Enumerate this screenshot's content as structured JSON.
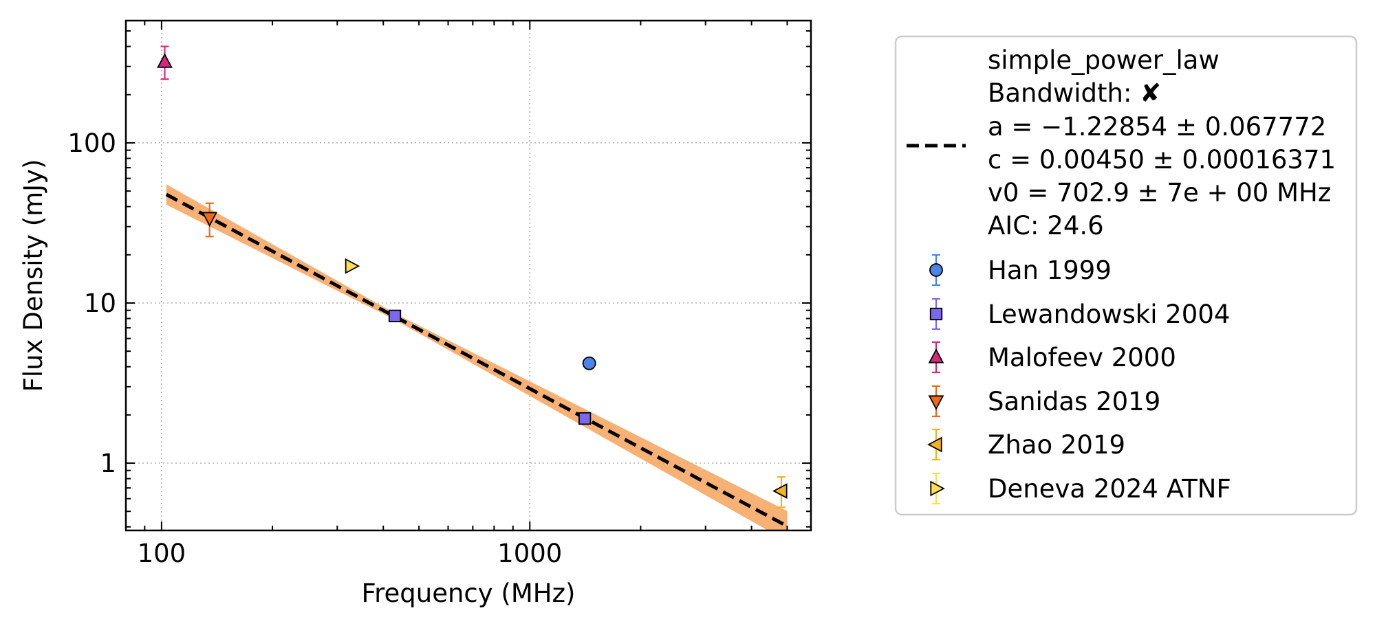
{
  "chart_data": {
    "type": "scatter",
    "xlabel": "Frequency (MHz)",
    "ylabel": "Flux Density (mJy)",
    "xscale": "log",
    "yscale": "log",
    "xlim": [
      80,
      5800
    ],
    "ylim": [
      0.38,
      580
    ],
    "xticks": [
      {
        "value": 100,
        "label": "100"
      },
      {
        "value": 1000,
        "label": "1000"
      }
    ],
    "yticks": [
      {
        "value": 1,
        "label": "1"
      },
      {
        "value": 10,
        "label": "10"
      },
      {
        "value": 100,
        "label": "100"
      }
    ],
    "grid": true,
    "legend_position": "outside-right",
    "fit": {
      "name": "simple_power_law",
      "bandwidth_label": "Bandwidth:",
      "bandwidth_value": "✘",
      "param_a": "a = −1.22854 ± 0.067772",
      "param_c": "c = 0.00450 ± 0.00016371",
      "param_v0": "v0 = 702.9 ± 7e + 00 MHz",
      "aic": "AIC: 24.6",
      "x_range": [
        103,
        5000
      ],
      "v0": 702.9,
      "a": -1.22854,
      "c_mJy": 4.5,
      "line_color": "#000000",
      "band_color": "#f7a35c"
    },
    "series": [
      {
        "name": "Han 1999",
        "marker": "circle",
        "color": "#4c84e8",
        "points": [
          {
            "x": 1450,
            "y": 4.2
          }
        ]
      },
      {
        "name": "Lewandowski 2004",
        "marker": "square",
        "color": "#7b68ee",
        "points": [
          {
            "x": 430,
            "y": 8.3
          },
          {
            "x": 1410,
            "y": 1.9
          }
        ]
      },
      {
        "name": "Malofeev 2000",
        "marker": "triangle-up",
        "color": "#d6287e",
        "points": [
          {
            "x": 102,
            "y": 320,
            "ylow": 250,
            "yhigh": 400
          }
        ]
      },
      {
        "name": "Sanidas 2019",
        "marker": "triangle-down",
        "color": "#f06a14",
        "points": [
          {
            "x": 135,
            "y": 34,
            "ylow": 26,
            "yhigh": 42
          }
        ]
      },
      {
        "name": "Zhao 2019",
        "marker": "triangle-left",
        "color": "#f5b21f",
        "points": [
          {
            "x": 4820,
            "y": 0.67,
            "ylow": 0.53,
            "yhigh": 0.82
          }
        ]
      },
      {
        "name": "Deneva 2024 ATNF",
        "marker": "triangle-right",
        "color": "#fde050",
        "points": [
          {
            "x": 327,
            "y": 17
          }
        ]
      }
    ]
  }
}
